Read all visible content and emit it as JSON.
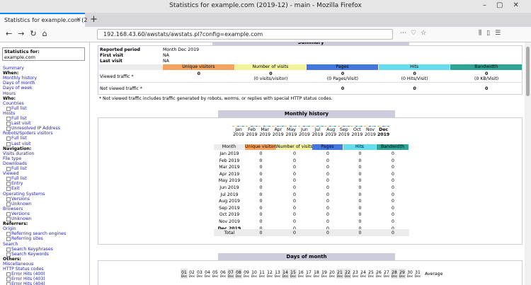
{
  "window": {
    "title": "Statistics for example.com (2019-12) - main - Mozilla Firefox",
    "tab": "Statistics for example.com (2",
    "url": "192.168.43.60/awstats/awstats.pl?config=example.com"
  },
  "sidebar": {
    "stats_for": "Statistics for:",
    "site": "example.com",
    "items": [
      {
        "text": "Summary",
        "kind": "link"
      },
      {
        "text": "When:",
        "kind": "head"
      },
      {
        "text": "Monthly history",
        "kind": "link"
      },
      {
        "text": "Days of month",
        "kind": "link"
      },
      {
        "text": "Days of week",
        "kind": "link"
      },
      {
        "text": "Hours",
        "kind": "link"
      },
      {
        "text": "Who:",
        "kind": "head"
      },
      {
        "text": "Countries",
        "kind": "link"
      },
      {
        "text": "Full list",
        "kind": "sub"
      },
      {
        "text": "Hosts",
        "kind": "link"
      },
      {
        "text": "Full list",
        "kind": "sub"
      },
      {
        "text": "Last visit",
        "kind": "sub"
      },
      {
        "text": "Unresolved IP Address",
        "kind": "sub"
      },
      {
        "text": "Robots/Spiders visitors",
        "kind": "link"
      },
      {
        "text": "Full list",
        "kind": "sub"
      },
      {
        "text": "Last visit",
        "kind": "sub"
      },
      {
        "text": "Navigation:",
        "kind": "head"
      },
      {
        "text": "Visits duration",
        "kind": "link"
      },
      {
        "text": "File type",
        "kind": "link"
      },
      {
        "text": "Downloads",
        "kind": "link"
      },
      {
        "text": "Full list",
        "kind": "sub"
      },
      {
        "text": "Viewed",
        "kind": "link"
      },
      {
        "text": "Full list",
        "kind": "sub"
      },
      {
        "text": "Entry",
        "kind": "sub"
      },
      {
        "text": "Exit",
        "kind": "sub"
      },
      {
        "text": "Operating Systems",
        "kind": "link"
      },
      {
        "text": "Versions",
        "kind": "sub"
      },
      {
        "text": "Unknown",
        "kind": "sub"
      },
      {
        "text": "Browsers",
        "kind": "link"
      },
      {
        "text": "Versions",
        "kind": "sub"
      },
      {
        "text": "Unknown",
        "kind": "sub"
      },
      {
        "text": "Referrers:",
        "kind": "head"
      },
      {
        "text": "Origin",
        "kind": "link"
      },
      {
        "text": "Referring search engines",
        "kind": "sub"
      },
      {
        "text": "Referring sites",
        "kind": "sub"
      },
      {
        "text": "Search",
        "kind": "link"
      },
      {
        "text": "Search Keyphrases",
        "kind": "sub"
      },
      {
        "text": "Search Keywords",
        "kind": "sub"
      },
      {
        "text": "Others:",
        "kind": "head"
      },
      {
        "text": "Miscellaneous",
        "kind": "link"
      },
      {
        "text": "HTTP Status codes",
        "kind": "link"
      },
      {
        "text": "Error Hits (400)",
        "kind": "sub"
      },
      {
        "text": "Error Hits (403)",
        "kind": "sub"
      },
      {
        "text": "Error Hits (404)",
        "kind": "sub"
      }
    ]
  },
  "summary": {
    "title": "Summary",
    "rows": [
      [
        "Reported period",
        "Month Dec 2019"
      ],
      [
        "First visit",
        "NA"
      ],
      [
        "Last visit",
        "NA"
      ]
    ],
    "columns": [
      "Unique visitors",
      "Number of visits",
      "Pages",
      "Hits",
      "Bandwidth"
    ],
    "viewed": {
      "label": "Viewed traffic *",
      "values": [
        0,
        0,
        0,
        0,
        0
      ],
      "notes": [
        null,
        "(0 visits/visitor)",
        "(0 Pages/Visit)",
        "(0 Hits/Visit)",
        "(0 KB/Visit)"
      ]
    },
    "not_viewed": {
      "label": "Not viewed traffic *",
      "values": [
        0,
        0,
        0
      ]
    },
    "note": "* Not viewed traffic includes traffic generated by robots, worms, or replies with special HTTP status codes."
  },
  "history": {
    "title": "Monthly history",
    "chart": [
      {
        "month": "Jan",
        "year": "2019"
      },
      {
        "month": "Feb",
        "year": "2019"
      },
      {
        "month": "Mar",
        "year": "2019"
      },
      {
        "month": "Apr",
        "year": "2019"
      },
      {
        "month": "May",
        "year": "2019"
      },
      {
        "month": "Jun",
        "year": "2019"
      },
      {
        "month": "Jul",
        "year": "2019"
      },
      {
        "month": "Aug",
        "year": "2019"
      },
      {
        "month": "Sep",
        "year": "2019"
      },
      {
        "month": "Oct",
        "year": "2019"
      },
      {
        "month": "Nov",
        "year": "2019"
      },
      {
        "month": "Dec",
        "year": "2019"
      }
    ],
    "columns": [
      "Month",
      "Unique visitors",
      "Number of visits",
      "Pages",
      "Hits",
      "Bandwidth"
    ],
    "rows": [
      {
        "month": "Jan 2019",
        "values": [
          0,
          0,
          0,
          0,
          0
        ]
      },
      {
        "month": "Feb 2019",
        "values": [
          0,
          0,
          0,
          0,
          0
        ]
      },
      {
        "month": "Mar 2019",
        "values": [
          0,
          0,
          0,
          0,
          0
        ]
      },
      {
        "month": "Apr 2019",
        "values": [
          0,
          0,
          0,
          0,
          0
        ]
      },
      {
        "month": "May 2019",
        "values": [
          0,
          0,
          0,
          0,
          0
        ]
      },
      {
        "month": "Jun 2019",
        "values": [
          0,
          0,
          0,
          0,
          0
        ]
      },
      {
        "month": "Jul 2019",
        "values": [
          0,
          0,
          0,
          0,
          0
        ]
      },
      {
        "month": "Aug 2019",
        "values": [
          0,
          0,
          0,
          0,
          0
        ]
      },
      {
        "month": "Sep 2019",
        "values": [
          0,
          0,
          0,
          0,
          0
        ]
      },
      {
        "month": "Oct 2019",
        "values": [
          0,
          0,
          0,
          0,
          0
        ]
      },
      {
        "month": "Nov 2019",
        "values": [
          0,
          0,
          0,
          0,
          0
        ]
      },
      {
        "month": "Dec 2019",
        "values": [
          0,
          0,
          0,
          0,
          0
        ]
      }
    ],
    "total": {
      "label": "Total",
      "values": [
        0,
        0,
        0,
        0,
        0
      ]
    }
  },
  "days": {
    "title": "Days of month",
    "labels": [
      {
        "day": "01",
        "month": "Dec"
      },
      {
        "day": "02",
        "month": "Dec"
      },
      {
        "day": "03",
        "month": "Dec"
      },
      {
        "day": "04",
        "month": "Dec"
      },
      {
        "day": "05",
        "month": "Dec"
      },
      {
        "day": "06",
        "month": "Dec"
      },
      {
        "day": "07",
        "month": "Dec"
      },
      {
        "day": "08",
        "month": "Dec"
      },
      {
        "day": "09",
        "month": "Dec"
      },
      {
        "day": "10",
        "month": "Dec"
      },
      {
        "day": "11",
        "month": "Dec"
      },
      {
        "day": "12",
        "month": "Dec"
      },
      {
        "day": "13",
        "month": "Dec"
      },
      {
        "day": "14",
        "month": "Dec"
      },
      {
        "day": "15",
        "month": "Dec"
      },
      {
        "day": "16",
        "month": "Dec"
      },
      {
        "day": "17",
        "month": "Dec"
      },
      {
        "day": "18",
        "month": "Dec"
      },
      {
        "day": "19",
        "month": "Dec"
      },
      {
        "day": "20",
        "month": "Dec"
      },
      {
        "day": "21",
        "month": "Dec"
      },
      {
        "day": "22",
        "month": "Dec"
      },
      {
        "day": "23",
        "month": "Dec"
      },
      {
        "day": "24",
        "month": "Dec"
      },
      {
        "day": "25",
        "month": "Dec"
      },
      {
        "day": "26",
        "month": "Dec"
      },
      {
        "day": "27",
        "month": "Dec"
      },
      {
        "day": "28",
        "month": "Dec"
      },
      {
        "day": "29",
        "month": "Dec"
      },
      {
        "day": "30",
        "month": "Dec"
      },
      {
        "day": "31",
        "month": "Dec"
      }
    ],
    "average": "Average"
  }
}
